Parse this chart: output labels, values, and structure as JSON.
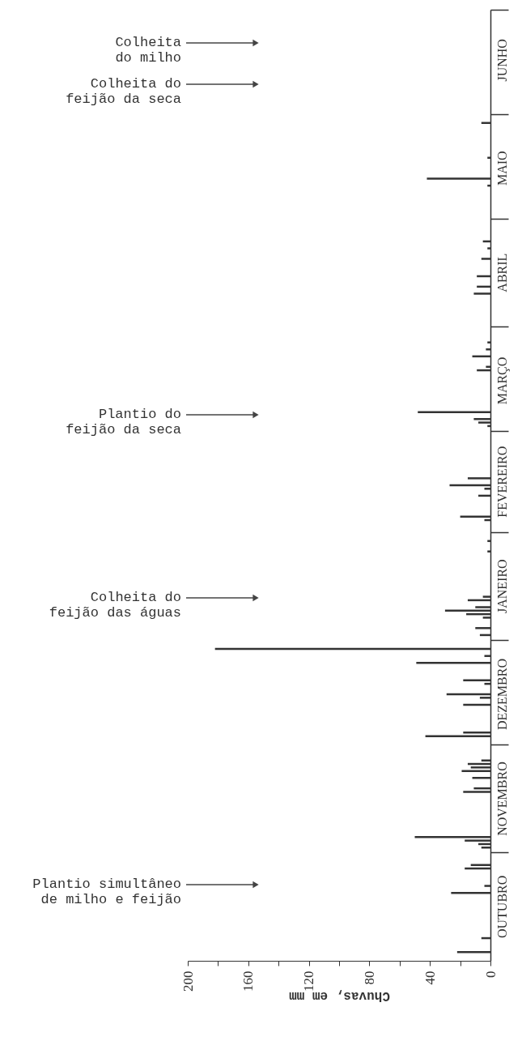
{
  "chart_data": {
    "type": "bar",
    "orientation": "horizontal",
    "xlabel": "Chuvas, em mm",
    "xlim": [
      200,
      0
    ],
    "xticks": [
      200,
      {
        "value": 180,
        "label": null
      },
      160,
      {
        "value": 140,
        "label": null
      },
      120,
      {
        "value": 100,
        "label": null
      },
      80,
      {
        "value": 60,
        "label": null
      },
      40,
      {
        "value": 20,
        "label": null
      },
      0
    ],
    "grid": false,
    "categories": [
      null,
      null,
      null,
      null,
      null,
      null,
      null,
      null,
      null,
      null,
      null,
      null,
      null,
      null,
      "JUNHO",
      null,
      null,
      null,
      null,
      null,
      null,
      null,
      null,
      null,
      null,
      null,
      null,
      null,
      null,
      null,
      null,
      null,
      null,
      null,
      null,
      null,
      null,
      null,
      null,
      null,
      null,
      null,
      null,
      null,
      null,
      "MAIO",
      null,
      null,
      null,
      null,
      null,
      null,
      null,
      null,
      null,
      null,
      null,
      null,
      null,
      null,
      null,
      null,
      null,
      null,
      null,
      null,
      null,
      null,
      null,
      null,
      null,
      null,
      null,
      null,
      null,
      "ABRIL",
      null,
      null,
      null,
      null,
      null,
      null,
      null,
      null,
      null,
      null,
      null,
      null,
      null,
      null,
      null,
      null,
      null,
      null,
      null,
      null,
      null,
      null,
      null,
      null,
      null,
      null,
      null,
      null,
      null,
      null,
      "MARÇO",
      null,
      null,
      null,
      null,
      null,
      null,
      null,
      null,
      null,
      null,
      null,
      null,
      null,
      null,
      null,
      null,
      null,
      null,
      null,
      null,
      null,
      null,
      null,
      null,
      null,
      null,
      null,
      null,
      "FEVEREIRO",
      null,
      null,
      null,
      null,
      null,
      null,
      null,
      null,
      null,
      null,
      null,
      null,
      null,
      null,
      null,
      null,
      null,
      null,
      null,
      null,
      null,
      null,
      null,
      null,
      null,
      null,
      null,
      null,
      null,
      "JANEIRO",
      null,
      null,
      null,
      null,
      null,
      null,
      null,
      null,
      null,
      null,
      null,
      null,
      null,
      null,
      null,
      null,
      null,
      null,
      null,
      null,
      null,
      null,
      null,
      null,
      null,
      null,
      null,
      null,
      null,
      null,
      "DEZEMBRO",
      null,
      null,
      null,
      null,
      null,
      null,
      null,
      null,
      null,
      null,
      null,
      null,
      null,
      null,
      null,
      null,
      null,
      null,
      null,
      null,
      null,
      null,
      null,
      null,
      null,
      null,
      null,
      null,
      null,
      "NOVEMBRO",
      null,
      null,
      null,
      null,
      null,
      null,
      null,
      null,
      null,
      null,
      null,
      null,
      null,
      null,
      null,
      null,
      null,
      null,
      null,
      null,
      null,
      null,
      null,
      null,
      null,
      null,
      null,
      null,
      null,
      null,
      "OUTUBRO",
      null,
      null,
      null,
      null,
      null,
      null,
      null,
      null,
      null,
      null,
      null,
      null,
      null,
      null,
      null
    ],
    "series": [
      {
        "color": "#333333",
        "values": [
          null,
          null,
          null,
          null,
          null,
          null,
          null,
          null,
          null,
          null,
          null,
          null,
          null,
          null,
          null,
          null,
          null,
          null,
          null,
          null,
          null,
          null,
          null,
          null,
          null,
          null,
          null,
          null,
          null,
          null,
          null,
          null,
          6,
          null,
          null,
          null,
          null,
          null,
          null,
          null,
          null,
          null,
          2,
          null,
          null,
          null,
          null,
          null,
          42,
          null,
          2,
          null,
          null,
          null,
          null,
          null,
          null,
          null,
          null,
          null,
          null,
          null,
          null,
          null,
          null,
          null,
          5,
          null,
          2,
          null,
          null,
          6,
          null,
          null,
          null,
          null,
          9,
          null,
          null,
          9,
          null,
          11,
          null,
          null,
          null,
          null,
          null,
          null,
          null,
          null,
          null,
          null,
          null,
          null,
          null,
          2,
          null,
          3,
          null,
          12,
          null,
          null,
          3,
          9,
          null,
          null,
          null,
          null,
          null,
          null,
          null,
          null,
          null,
          null,
          null,
          48,
          null,
          11,
          8,
          2,
          null,
          null,
          null,
          null,
          null,
          null,
          null,
          null,
          null,
          null,
          null,
          null,
          null,
          null,
          15,
          null,
          27,
          4,
          null,
          8,
          null,
          null,
          null,
          null,
          null,
          20,
          4,
          null,
          null,
          null,
          null,
          null,
          2,
          null,
          null,
          2,
          null,
          null,
          null,
          null,
          null,
          null,
          null,
          null,
          null,
          null,
          null,
          null,
          5,
          15,
          null,
          10,
          30,
          16,
          5,
          null,
          null,
          10,
          null,
          7,
          null,
          null,
          null,
          182,
          null,
          4,
          null,
          49,
          null,
          null,
          null,
          null,
          18,
          4,
          null,
          null,
          29,
          7,
          null,
          18,
          null,
          null,
          null,
          null,
          null,
          null,
          null,
          18,
          43,
          null,
          null,
          null,
          null,
          null,
          null,
          6,
          15,
          13,
          19,
          null,
          12,
          null,
          null,
          11,
          18,
          null,
          null,
          null,
          null,
          null,
          null,
          null,
          null,
          null,
          null,
          null,
          null,
          50,
          17,
          8,
          6,
          null,
          null,
          null,
          null,
          13,
          17,
          null,
          null,
          null,
          null,
          4,
          null,
          26,
          null,
          null,
          null,
          null,
          null,
          null,
          null,
          null,
          null,
          null,
          null,
          null,
          6,
          null,
          null,
          null,
          22,
          null,
          null
        ]
      }
    ],
    "annotations": [
      "Colheita\ndo milho",
      "Colheita do\nfeijão da seca",
      "Plantio do\nfeijão da seca",
      "Colheita do\nfeijão das águas",
      "Plantio simultâneo\nde milho e feijão"
    ]
  }
}
